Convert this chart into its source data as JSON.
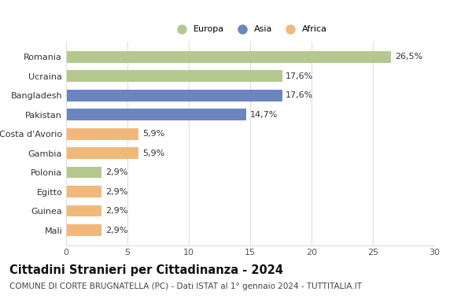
{
  "categories": [
    "Romania",
    "Ucraina",
    "Bangladesh",
    "Pakistan",
    "Costa d'Avorio",
    "Gambia",
    "Polonia",
    "Egitto",
    "Guinea",
    "Mali"
  ],
  "values": [
    26.5,
    17.6,
    17.6,
    14.7,
    5.9,
    5.9,
    2.9,
    2.9,
    2.9,
    2.9
  ],
  "labels": [
    "26,5%",
    "17,6%",
    "17,6%",
    "14,7%",
    "5,9%",
    "5,9%",
    "2,9%",
    "2,9%",
    "2,9%",
    "2,9%"
  ],
  "continents": [
    "Europa",
    "Europa",
    "Asia",
    "Asia",
    "Africa",
    "Africa",
    "Europa",
    "Africa",
    "Africa",
    "Africa"
  ],
  "colors": {
    "Europa": "#b5c98e",
    "Asia": "#6b85c0",
    "Africa": "#f0b97a"
  },
  "legend_labels": [
    "Europa",
    "Asia",
    "Africa"
  ],
  "title": "Cittadini Stranieri per Cittadinanza - 2024",
  "subtitle": "COMUNE DI CORTE BRUGNATELLA (PC) - Dati ISTAT al 1° gennaio 2024 - TUTTITALIA.IT",
  "xlim": [
    0,
    30
  ],
  "xticks": [
    0,
    5,
    10,
    15,
    20,
    25,
    30
  ],
  "background_color": "#ffffff",
  "grid_color": "#dddddd",
  "title_fontsize": 10.5,
  "subtitle_fontsize": 7.5,
  "label_fontsize": 8,
  "tick_fontsize": 8
}
